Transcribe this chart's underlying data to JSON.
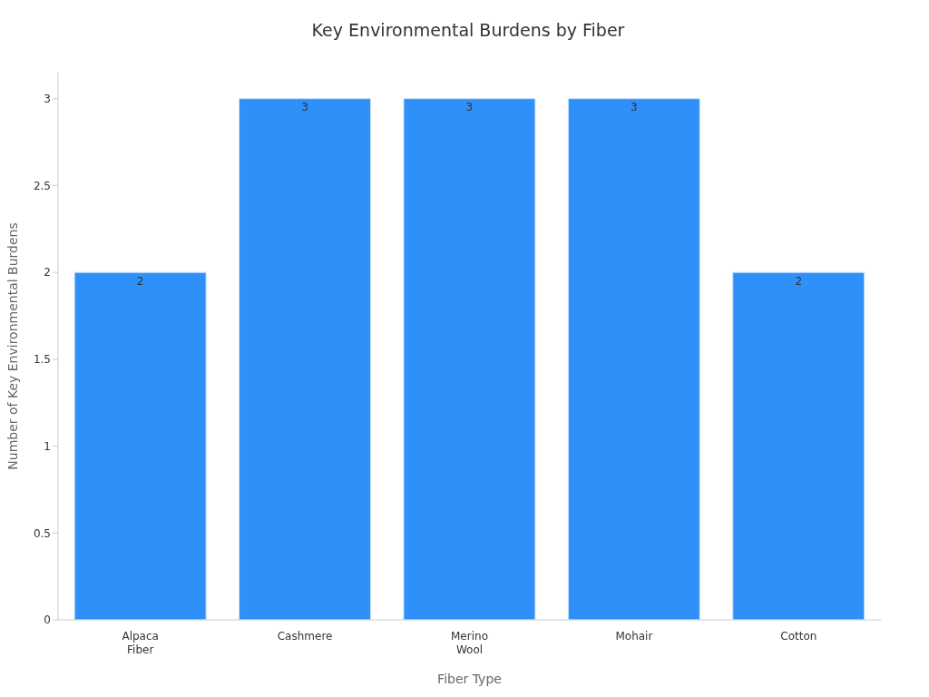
{
  "chart_data": {
    "type": "bar",
    "title": "Key Environmental Burdens by Fiber",
    "xlabel": "Fiber Type",
    "ylabel": "Number of Key Environmental Burdens",
    "categories": [
      "Alpaca Fiber",
      "Cashmere",
      "Merino Wool",
      "Mohair",
      "Cotton"
    ],
    "values": [
      2,
      3,
      3,
      3,
      2
    ],
    "color": "#2e90f8",
    "data_labels": true,
    "ylim": [
      0,
      3.15
    ],
    "yticks": [
      0,
      0.5,
      1,
      1.5,
      2,
      2.5,
      3
    ],
    "grid": false,
    "legend": false
  }
}
